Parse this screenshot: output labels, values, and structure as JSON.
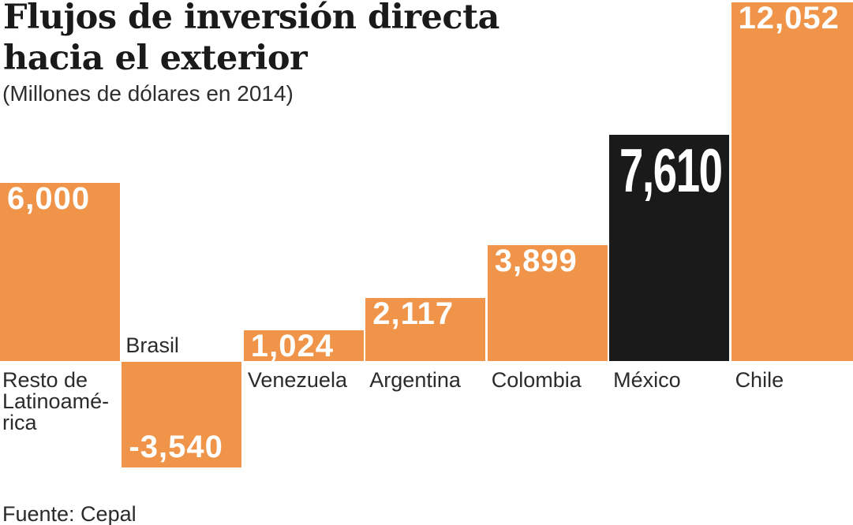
{
  "header": {
    "title_lines": [
      "Flujos de inversión directa",
      "hacia el exterior"
    ],
    "subtitle": "(Millones de dólares en 2014)"
  },
  "footer": {
    "source": "Fuente: Cepal"
  },
  "chart_data": {
    "type": "bar",
    "title": "Flujos de inversión directa hacia el exterior",
    "subtitle": "(Millones de dólares en 2014)",
    "unit": "Millones de dólares",
    "year": "2014",
    "source": "Fuente: Cepal",
    "orientation": "vertical",
    "grid": "off",
    "axes_shown": "none",
    "baseline_value": 0,
    "categories": [
      "Resto de Latinoamérica",
      "Brasil",
      "Venezuela",
      "Argentina",
      "Colombia",
      "México",
      "Chile"
    ],
    "values": [
      6000,
      -3540,
      1024,
      2117,
      3899,
      7610,
      12052
    ],
    "highlighted_category": "México",
    "colors": {
      "bar": "#F0944A",
      "highlight_bar": "#1A1A1A",
      "value_text": "#FFFFFF",
      "label_text": "#2B2B2B"
    },
    "bars": [
      {
        "category": "Resto de Latinoamérica",
        "label_lines": [
          "Resto de",
          "Latinoamé-",
          "rica"
        ],
        "value": 6000,
        "value_label": "6,000",
        "highlight": false
      },
      {
        "category": "Brasil",
        "label_lines": [
          "Brasil"
        ],
        "value": -3540,
        "value_label": "-3,540",
        "highlight": false
      },
      {
        "category": "Venezuela",
        "label_lines": [
          "Venezuela"
        ],
        "value": 1024,
        "value_label": "1,024",
        "highlight": false
      },
      {
        "category": "Argentina",
        "label_lines": [
          "Argentina"
        ],
        "value": 2117,
        "value_label": "2,117",
        "highlight": false
      },
      {
        "category": "Colombia",
        "label_lines": [
          "Colombia"
        ],
        "value": 3899,
        "value_label": "3,899",
        "highlight": false
      },
      {
        "category": "México",
        "label_lines": [
          "México"
        ],
        "value": 7610,
        "value_label": "7,610",
        "highlight": true
      },
      {
        "category": "Chile",
        "label_lines": [
          "Chile"
        ],
        "value": 12052,
        "value_label": "12,052",
        "highlight": false
      }
    ]
  }
}
